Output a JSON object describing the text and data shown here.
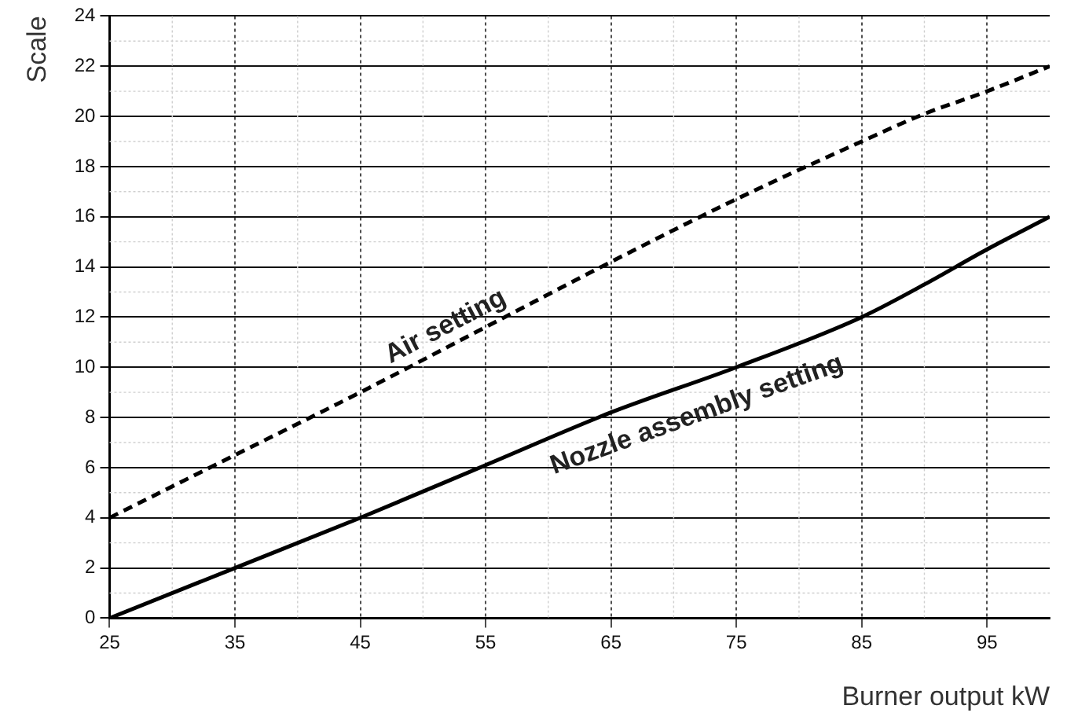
{
  "chart_data": {
    "type": "line",
    "xlabel": "Burner output kW",
    "ylabel": "Scale",
    "x": [
      25,
      35,
      45,
      55,
      65,
      75,
      85,
      90,
      95,
      100
    ],
    "series": [
      {
        "name": "Air setting",
        "color": "#000000",
        "line_style": "dashed",
        "values": [
          4,
          6.5,
          9,
          11.6,
          14.2,
          16.7,
          19,
          20.1,
          21,
          22
        ]
      },
      {
        "name": "Nozzle assembly setting",
        "color": "#000000",
        "line_style": "solid",
        "values": [
          0,
          2,
          4,
          6.1,
          8.2,
          10,
          12,
          13.3,
          14.7,
          16
        ]
      }
    ],
    "xlim": [
      25,
      100
    ],
    "xticks": [
      25,
      35,
      45,
      55,
      65,
      75,
      85,
      95
    ],
    "ylim": [
      0,
      24
    ],
    "yticks": [
      0,
      2,
      4,
      6,
      8,
      10,
      12,
      14,
      16,
      18,
      20,
      22,
      24
    ],
    "grid": true,
    "legend": false,
    "marker": "none"
  }
}
